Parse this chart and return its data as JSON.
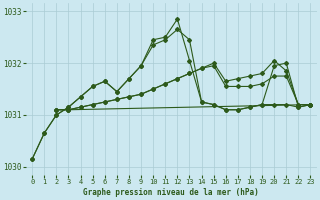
{
  "title": "Graphe pression niveau de la mer (hPa)",
  "bg_color": "#cce8f0",
  "line_color": "#2d5a1b",
  "grid_color": "#aaccd4",
  "xlim": [
    -0.5,
    23.5
  ],
  "ylim": [
    1029.85,
    1033.15
  ],
  "yticks": [
    1030,
    1031,
    1032,
    1033
  ],
  "xticks": [
    0,
    1,
    2,
    3,
    4,
    5,
    6,
    7,
    8,
    9,
    10,
    11,
    12,
    13,
    14,
    15,
    16,
    17,
    18,
    19,
    20,
    21,
    22,
    23
  ],
  "series": [
    {
      "x": [
        0,
        1,
        2,
        3,
        4,
        5,
        6,
        7,
        8,
        9,
        10,
        11,
        12,
        13,
        14,
        15,
        16,
        17,
        18,
        19,
        20,
        21,
        22,
        23
      ],
      "y": [
        1030.15,
        1030.65,
        1031.0,
        1031.15,
        1031.35,
        1031.55,
        1031.65,
        1031.45,
        1031.7,
        1031.95,
        1032.45,
        1032.5,
        1032.85,
        1032.05,
        1031.25,
        1031.2,
        1031.1,
        1031.1,
        1031.15,
        1031.2,
        1031.2,
        1031.2,
        1031.15,
        1031.2
      ]
    },
    {
      "x": [
        0,
        1,
        2,
        3,
        4,
        5,
        6,
        7,
        8,
        9,
        10,
        11,
        12,
        13,
        14,
        15,
        16,
        17,
        18,
        19,
        20,
        21,
        22,
        23
      ],
      "y": [
        1030.15,
        1030.65,
        1031.0,
        1031.15,
        1031.35,
        1031.55,
        1031.65,
        1031.45,
        1031.7,
        1031.95,
        1032.35,
        1032.45,
        1032.65,
        1032.45,
        1031.25,
        1031.2,
        1031.1,
        1031.1,
        1031.15,
        1031.2,
        1031.95,
        1032.0,
        1031.15,
        1031.2
      ]
    },
    {
      "x": [
        2,
        3,
        4,
        5,
        6,
        7,
        8,
        9,
        10,
        11,
        12,
        13,
        14,
        15,
        16,
        17,
        18,
        19,
        20,
        21,
        22,
        23
      ],
      "y": [
        1031.1,
        1031.1,
        1031.15,
        1031.2,
        1031.25,
        1031.3,
        1031.35,
        1031.4,
        1031.5,
        1031.6,
        1031.7,
        1031.8,
        1031.9,
        1032.0,
        1031.65,
        1031.7,
        1031.75,
        1031.8,
        1032.05,
        1031.85,
        1031.2,
        1031.2
      ]
    },
    {
      "x": [
        2,
        3,
        4,
        5,
        6,
        7,
        8,
        9,
        10,
        11,
        12,
        13,
        14,
        15,
        16,
        17,
        18,
        19,
        20,
        21,
        22,
        23
      ],
      "y": [
        1031.1,
        1031.1,
        1031.15,
        1031.2,
        1031.25,
        1031.3,
        1031.35,
        1031.4,
        1031.5,
        1031.6,
        1031.7,
        1031.8,
        1031.9,
        1031.95,
        1031.55,
        1031.55,
        1031.55,
        1031.6,
        1031.75,
        1031.75,
        1031.2,
        1031.2
      ]
    },
    {
      "x": [
        2,
        3,
        23
      ],
      "y": [
        1031.1,
        1031.1,
        1031.2
      ]
    }
  ]
}
